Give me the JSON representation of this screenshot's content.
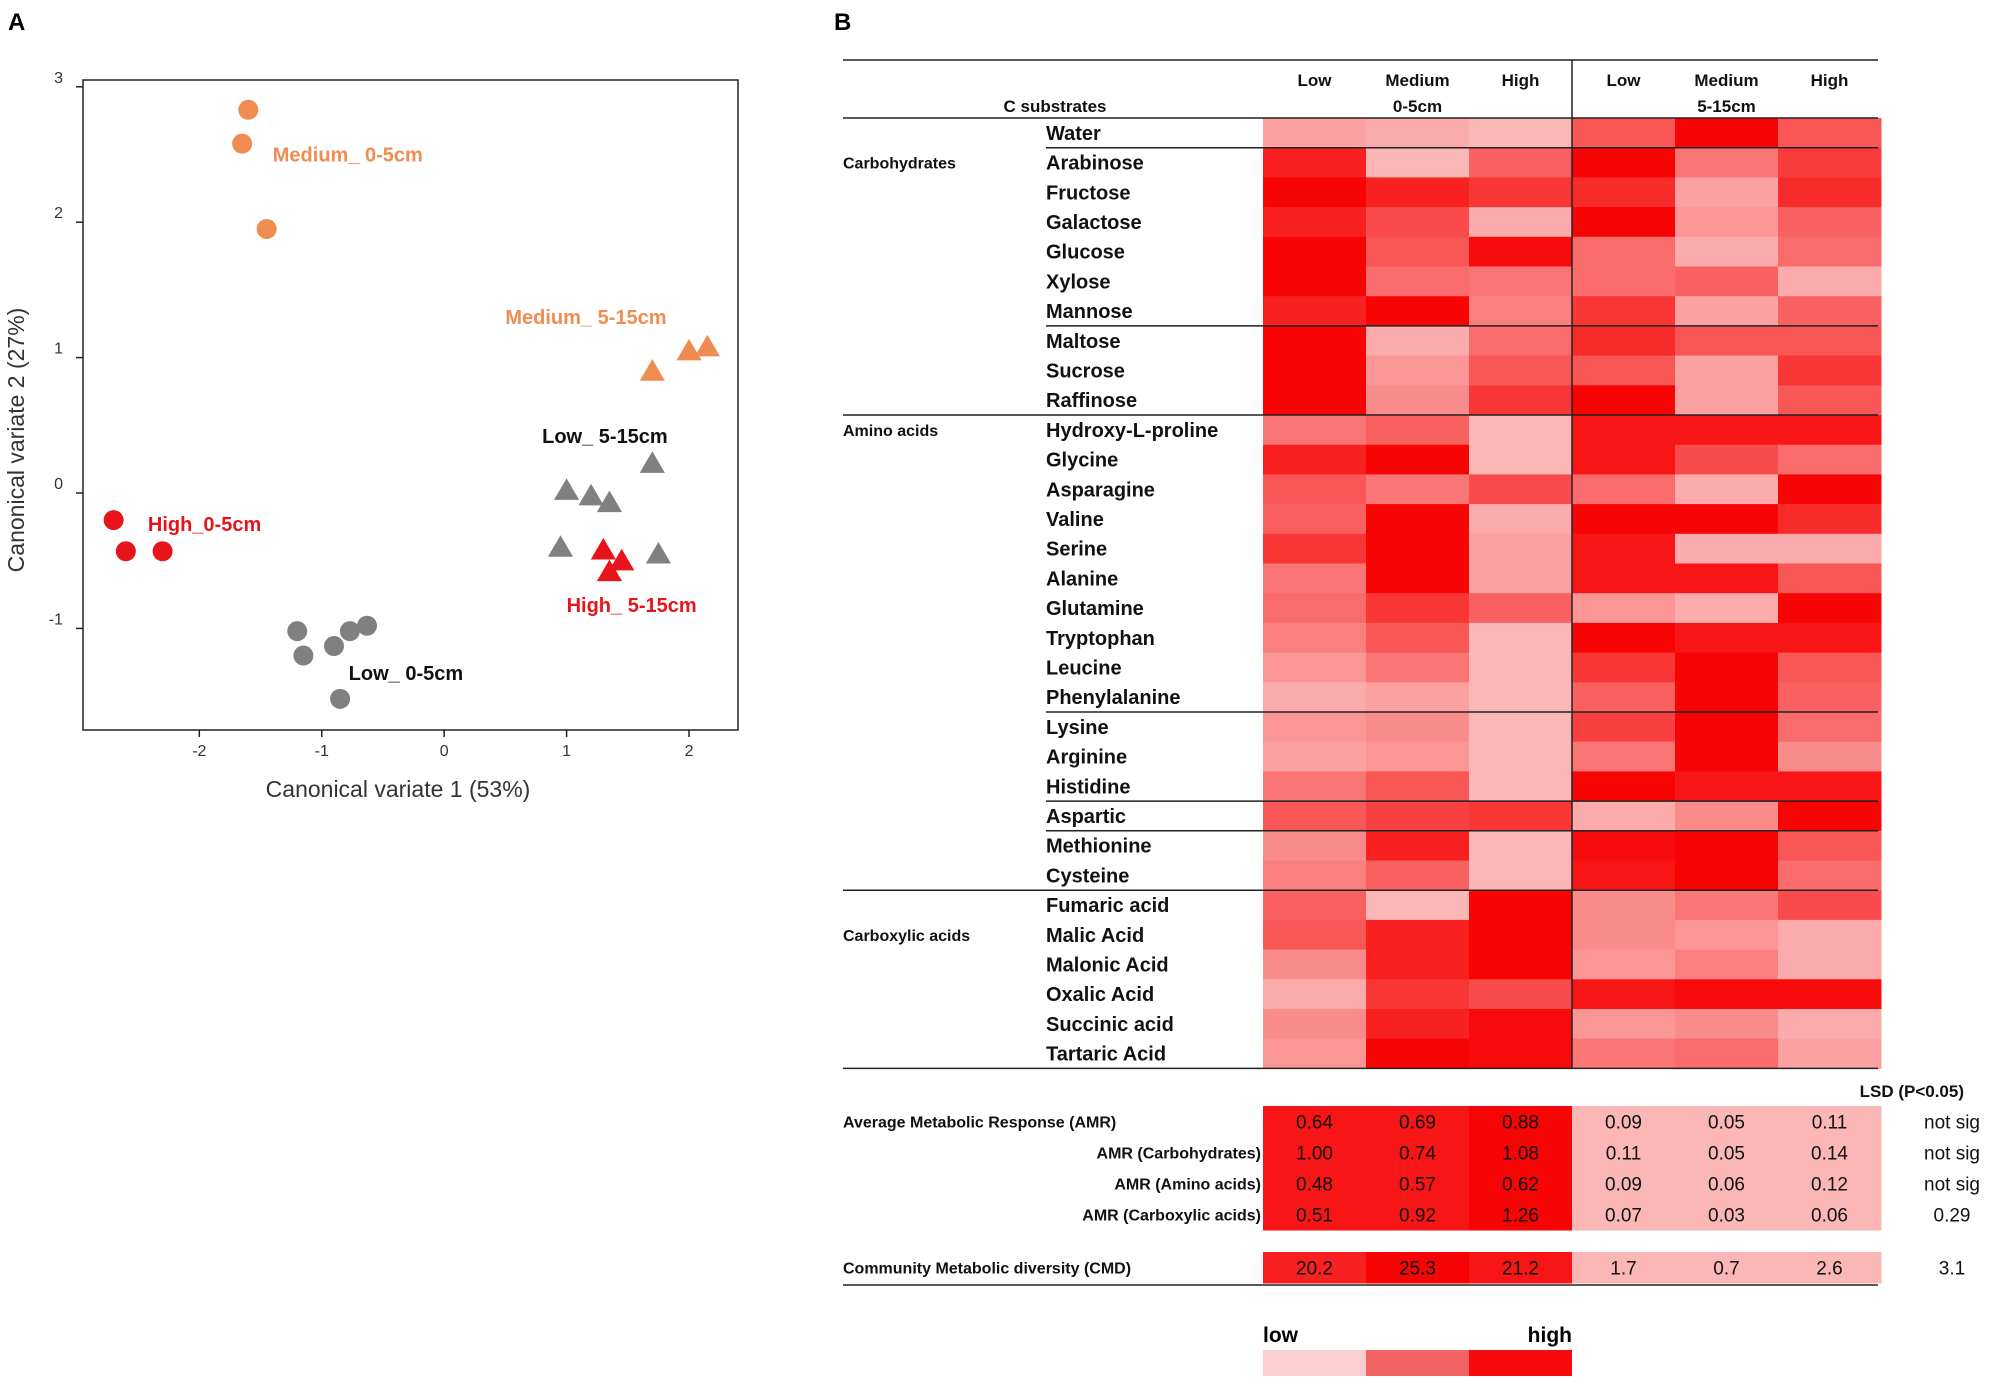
{
  "panel_a": {
    "label": "A",
    "chart_data": {
      "type": "scatter",
      "xlabel": "Canonical variate 1 (53%)",
      "ylabel": "Canonical variate 2 (27%)",
      "xlim": [
        -2.95,
        2.4
      ],
      "ylim": [
        -1.75,
        3.05
      ],
      "xticks": [
        -2,
        -1,
        0,
        1,
        2
      ],
      "yticks": [
        3,
        2,
        1,
        0,
        -1
      ],
      "series": [
        {
          "name": "Medium_ 0-5cm",
          "color": "#F08C50",
          "marker": "circle",
          "points": [
            [
              -1.6,
              2.83
            ],
            [
              -1.65,
              2.58
            ],
            [
              -1.45,
              1.95
            ]
          ]
        },
        {
          "name": "Medium_ 5-15cm",
          "color": "#F08C50",
          "marker": "triangle",
          "points": [
            [
              1.7,
              0.9
            ],
            [
              2.0,
              1.05
            ],
            [
              2.15,
              1.08
            ]
          ]
        },
        {
          "name": "Low_ 5-15cm",
          "color": "#808080",
          "marker": "triangle",
          "points": [
            [
              1.0,
              0.02
            ],
            [
              1.2,
              -0.02
            ],
            [
              1.35,
              -0.07
            ],
            [
              1.7,
              0.22
            ],
            [
              0.95,
              -0.4
            ],
            [
              1.75,
              -0.45
            ]
          ]
        },
        {
          "name": "High_ 5-15cm",
          "color": "#E8131B",
          "marker": "triangle",
          "points": [
            [
              1.3,
              -0.42
            ],
            [
              1.45,
              -0.5
            ],
            [
              1.35,
              -0.58
            ]
          ]
        },
        {
          "name": "High_0-5cm",
          "color": "#E8131B",
          "marker": "circle",
          "points": [
            [
              -2.7,
              -0.2
            ],
            [
              -2.6,
              -0.43
            ],
            [
              -2.3,
              -0.43
            ]
          ]
        },
        {
          "name": "Low_ 0-5cm",
          "color": "#808080",
          "marker": "circle",
          "points": [
            [
              -1.2,
              -1.02
            ],
            [
              -1.15,
              -1.2
            ],
            [
              -0.9,
              -1.13
            ],
            [
              -0.77,
              -1.02
            ],
            [
              -0.63,
              -0.98
            ],
            [
              -0.85,
              -1.52
            ]
          ]
        }
      ],
      "labels": [
        {
          "text": "Medium_ 0-5cm",
          "color": "#F08C50",
          "at": [
            -1.4,
            2.45
          ]
        },
        {
          "text": "Medium_ 5-15cm",
          "color": "#F08C50",
          "at": [
            0.5,
            1.25
          ]
        },
        {
          "text": "Low_ 5-15cm",
          "color": "#111111",
          "at": [
            0.8,
            0.37
          ]
        },
        {
          "text": "High_ 5-15cm",
          "color": "#E8131B",
          "at": [
            1.0,
            -0.88
          ]
        },
        {
          "text": "High_0-5cm",
          "color": "#E8131B",
          "at": [
            -2.42,
            -0.28
          ]
        },
        {
          "text": "Low_ 0-5cm",
          "color": "#111111",
          "at": [
            -0.78,
            -1.38
          ]
        }
      ]
    }
  },
  "panel_b": {
    "label": "B",
    "chart_data": {
      "type": "heatmap",
      "row_header": "C substrates",
      "groups": [
        {
          "name": "0-5cm",
          "columns": [
            "Low",
            "Medium",
            "High"
          ]
        },
        {
          "name": "5-15cm",
          "columns": [
            "Low",
            "Medium",
            "High"
          ]
        }
      ],
      "categories": [
        {
          "name": "Carbohydrates",
          "first_row": 1
        },
        {
          "name": "Amino acids",
          "first_row": 10
        },
        {
          "name": "Carboxylic acids",
          "first_row": 27
        }
      ],
      "rows": [
        "Water",
        "Arabinose",
        "Fructose",
        "Galactose",
        "Glucose",
        "Xylose",
        "Mannose",
        "Maltose",
        "Sucrose",
        "Raffinose",
        "Hydroxy-L-proline",
        "Glycine",
        "Asparagine",
        "Valine",
        "Serine",
        "Alanine",
        "Glutamine",
        "Tryptophan",
        "Leucine",
        "Phenylalanine",
        "Lysine",
        "Arginine",
        "Histidine",
        "Aspartic",
        "Methionine",
        "Cysteine",
        "Fumaric acid",
        "Malic Acid",
        "Malonic Acid",
        "Oxalic Acid",
        "Succinic acid",
        "Tartaric Acid"
      ],
      "intensity_scale": "0 = low, 1 = high",
      "values": [
        [
          0.25,
          0.2,
          0.15,
          0.6,
          0.98,
          0.6
        ],
        [
          0.85,
          0.15,
          0.55,
          0.98,
          0.45,
          0.72
        ],
        [
          0.98,
          0.85,
          0.75,
          0.8,
          0.25,
          0.8
        ],
        [
          0.85,
          0.65,
          0.2,
          0.98,
          0.3,
          0.55
        ],
        [
          0.98,
          0.6,
          0.95,
          0.5,
          0.2,
          0.5
        ],
        [
          0.98,
          0.5,
          0.45,
          0.5,
          0.55,
          0.2
        ],
        [
          0.85,
          0.98,
          0.4,
          0.75,
          0.25,
          0.55
        ],
        [
          0.98,
          0.2,
          0.5,
          0.8,
          0.6,
          0.6
        ],
        [
          0.98,
          0.3,
          0.6,
          0.6,
          0.25,
          0.75
        ],
        [
          0.98,
          0.35,
          0.75,
          0.98,
          0.25,
          0.6
        ],
        [
          0.45,
          0.55,
          0.15,
          0.9,
          0.9,
          0.9
        ],
        [
          0.85,
          0.98,
          0.15,
          0.9,
          0.65,
          0.5
        ],
        [
          0.6,
          0.45,
          0.65,
          0.5,
          0.2,
          0.98
        ],
        [
          0.55,
          0.98,
          0.2,
          0.98,
          0.98,
          0.8
        ],
        [
          0.75,
          0.98,
          0.25,
          0.9,
          0.2,
          0.2
        ],
        [
          0.45,
          0.98,
          0.25,
          0.9,
          0.9,
          0.6
        ],
        [
          0.5,
          0.75,
          0.55,
          0.3,
          0.2,
          0.98
        ],
        [
          0.4,
          0.6,
          0.15,
          0.98,
          0.9,
          0.9
        ],
        [
          0.3,
          0.45,
          0.15,
          0.75,
          0.98,
          0.6
        ],
        [
          0.2,
          0.25,
          0.15,
          0.55,
          0.98,
          0.55
        ],
        [
          0.3,
          0.35,
          0.15,
          0.7,
          0.98,
          0.5
        ],
        [
          0.25,
          0.3,
          0.15,
          0.45,
          0.98,
          0.35
        ],
        [
          0.45,
          0.6,
          0.15,
          0.98,
          0.9,
          0.9
        ],
        [
          0.6,
          0.7,
          0.75,
          0.2,
          0.35,
          0.98
        ],
        [
          0.35,
          0.85,
          0.15,
          0.95,
          0.98,
          0.6
        ],
        [
          0.4,
          0.55,
          0.15,
          0.9,
          0.98,
          0.5
        ],
        [
          0.55,
          0.15,
          0.98,
          0.35,
          0.45,
          0.65
        ],
        [
          0.6,
          0.85,
          0.98,
          0.35,
          0.3,
          0.2
        ],
        [
          0.35,
          0.85,
          0.98,
          0.3,
          0.4,
          0.2
        ],
        [
          0.2,
          0.75,
          0.65,
          0.9,
          0.95,
          0.95
        ],
        [
          0.35,
          0.85,
          0.95,
          0.3,
          0.35,
          0.2
        ],
        [
          0.3,
          0.98,
          0.95,
          0.45,
          0.5,
          0.25
        ]
      ],
      "lsd_header": "LSD (P<0.05)",
      "summary": [
        {
          "label": "Average Metabolic Response (AMR)",
          "values": [
            "0.64",
            "0.69",
            "0.88",
            "0.09",
            "0.05",
            "0.11"
          ],
          "lsd": "not sig"
        },
        {
          "label": "AMR (Carbohydrates)",
          "values": [
            "1.00",
            "0.74",
            "1.08",
            "0.11",
            "0.05",
            "0.14"
          ],
          "lsd": "not sig"
        },
        {
          "label": "AMR (Amino acids)",
          "values": [
            "0.48",
            "0.57",
            "0.62",
            "0.09",
            "0.06",
            "0.12"
          ],
          "lsd": "not sig"
        },
        {
          "label": "AMR (Carboxylic acids)",
          "values": [
            "0.51",
            "0.92",
            "1.26",
            "0.07",
            "0.03",
            "0.06"
          ],
          "lsd": "0.29"
        }
      ],
      "summary_intensity": [
        [
          0.9,
          0.9,
          0.98,
          0.15,
          0.15,
          0.15
        ],
        [
          0.9,
          0.9,
          0.98,
          0.15,
          0.15,
          0.15
        ],
        [
          0.9,
          0.9,
          0.98,
          0.15,
          0.15,
          0.15
        ],
        [
          0.9,
          0.9,
          0.98,
          0.15,
          0.15,
          0.15
        ]
      ],
      "cmd": {
        "label": "Community  Metabolic diversity (CMD)",
        "values": [
          "20.2",
          "25.3",
          "21.2",
          "1.7",
          "0.7",
          "2.6"
        ],
        "lsd": "3.1"
      },
      "cmd_intensity": [
        0.85,
        0.98,
        0.9,
        0.15,
        0.15,
        0.15
      ],
      "legend": {
        "low_label": "low",
        "high_label": "high",
        "colors": [
          "#FBCFCF",
          "#F26464",
          "#F70A0A"
        ]
      }
    }
  }
}
